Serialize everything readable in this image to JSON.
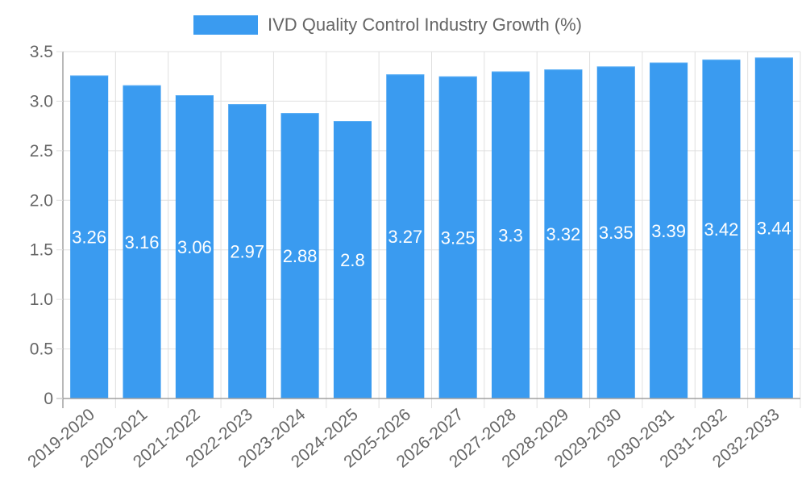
{
  "chart_data": {
    "type": "bar",
    "title": "",
    "legend": [
      {
        "label": "IVD Quality Control Industry Growth (%)",
        "color": "#3a9bf0"
      }
    ],
    "legend_position": "top",
    "categories": [
      "2019-2020",
      "2020-2021",
      "2021-2022",
      "2022-2023",
      "2023-2024",
      "2024-2025",
      "2025-2026",
      "2026-2027",
      "2027-2028",
      "2028-2029",
      "2029-2030",
      "2030-2031",
      "2031-2032",
      "2032-2033"
    ],
    "series": [
      {
        "name": "IVD Quality Control Industry Growth (%)",
        "values": [
          3.26,
          3.16,
          3.06,
          2.97,
          2.88,
          2.8,
          3.27,
          3.25,
          3.3,
          3.32,
          3.35,
          3.39,
          3.42,
          3.44
        ]
      }
    ],
    "data_labels": [
      "3.26",
      "3.16",
      "3.06",
      "2.97",
      "2.88",
      "2.8",
      "3.27",
      "3.25",
      "3.3",
      "3.32",
      "3.35",
      "3.39",
      "3.42",
      "3.44"
    ],
    "y_ticks": [
      "0",
      "0.5",
      "1.0",
      "1.5",
      "2.0",
      "2.5",
      "3.0",
      "3.5"
    ],
    "y_tick_values": [
      0,
      0.5,
      1.0,
      1.5,
      2.0,
      2.5,
      3.0,
      3.5
    ],
    "xlabel": "",
    "ylabel": "",
    "ylim": [
      0,
      3.5
    ],
    "grid": true,
    "colors": {
      "bar": "#3a9bf0",
      "bar_border": "#5aaef5",
      "grid": "#e0e0e0",
      "axis": "#a0a0a0",
      "tick_text": "#666666",
      "data_label": "#ffffff"
    }
  }
}
